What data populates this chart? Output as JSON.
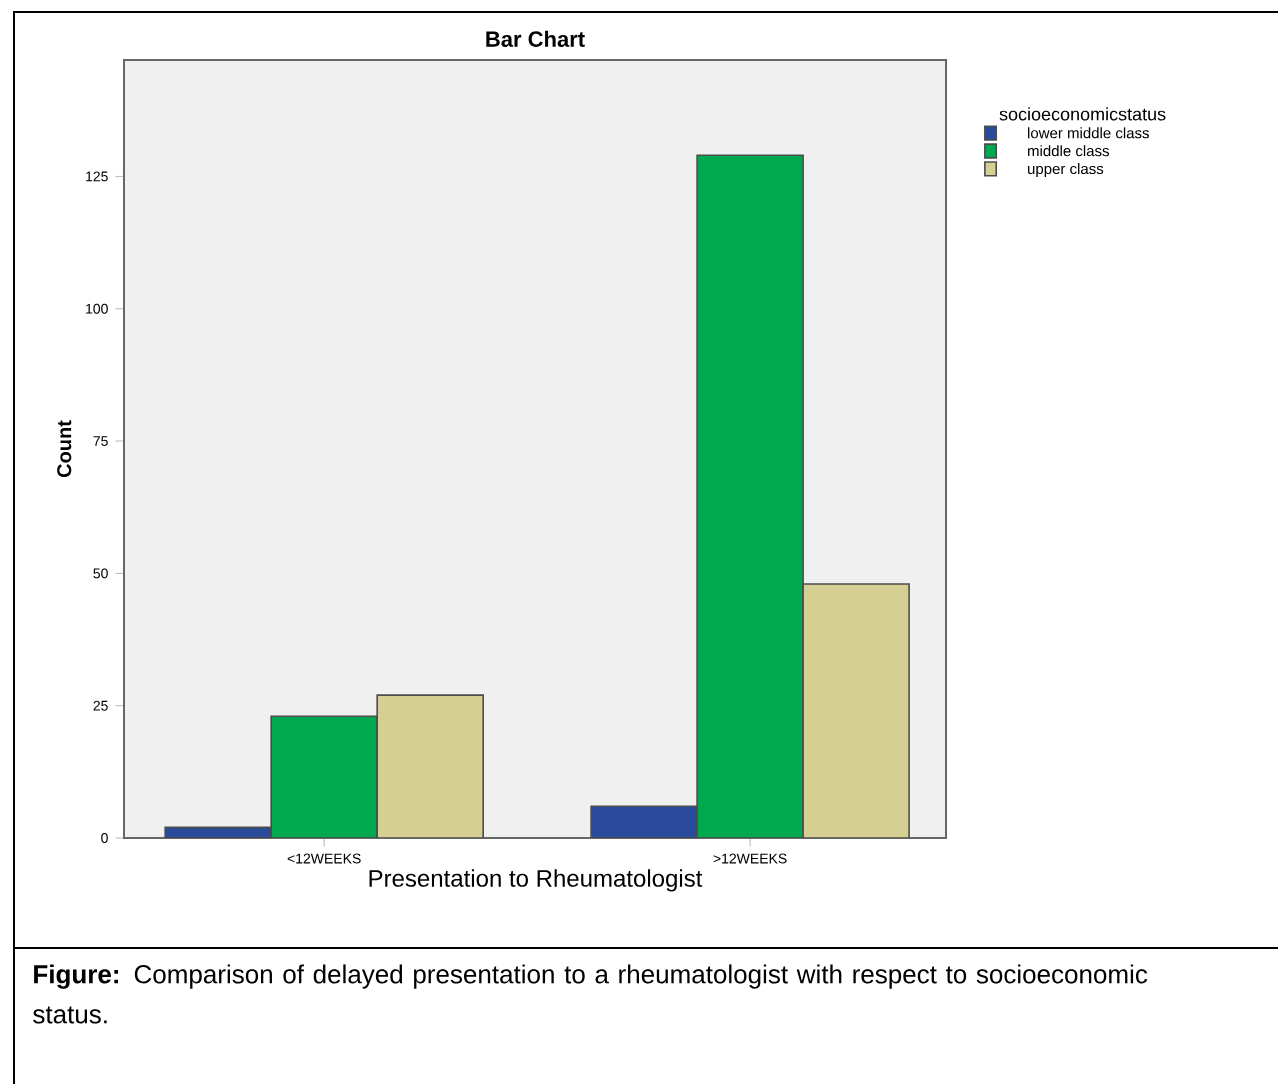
{
  "chart_data": {
    "type": "bar",
    "title": "Bar Chart",
    "xlabel": "Presentation to Rheumatologist",
    "ylabel": "Count",
    "legend_title": "socioeconomicstatus",
    "categories": [
      "<12WEEKS",
      ">12WEEKS"
    ],
    "series": [
      {
        "name": "lower middle class",
        "color": "#2a4b9b",
        "values": [
          2,
          6
        ]
      },
      {
        "name": "middle class",
        "color": "#00a84f",
        "values": [
          23,
          129
        ]
      },
      {
        "name": "upper class",
        "color": "#d6cf94",
        "values": [
          27,
          48
        ]
      }
    ],
    "ylim": [
      0,
      147
    ],
    "yticks": [
      0,
      25,
      50,
      75,
      100,
      125
    ],
    "grid": false,
    "legend": "top right",
    "annotations": [
      "**Figure:** Comparison of delayed presentation to a rheumatologist with respect to socioeconomic status."
    ]
  }
}
